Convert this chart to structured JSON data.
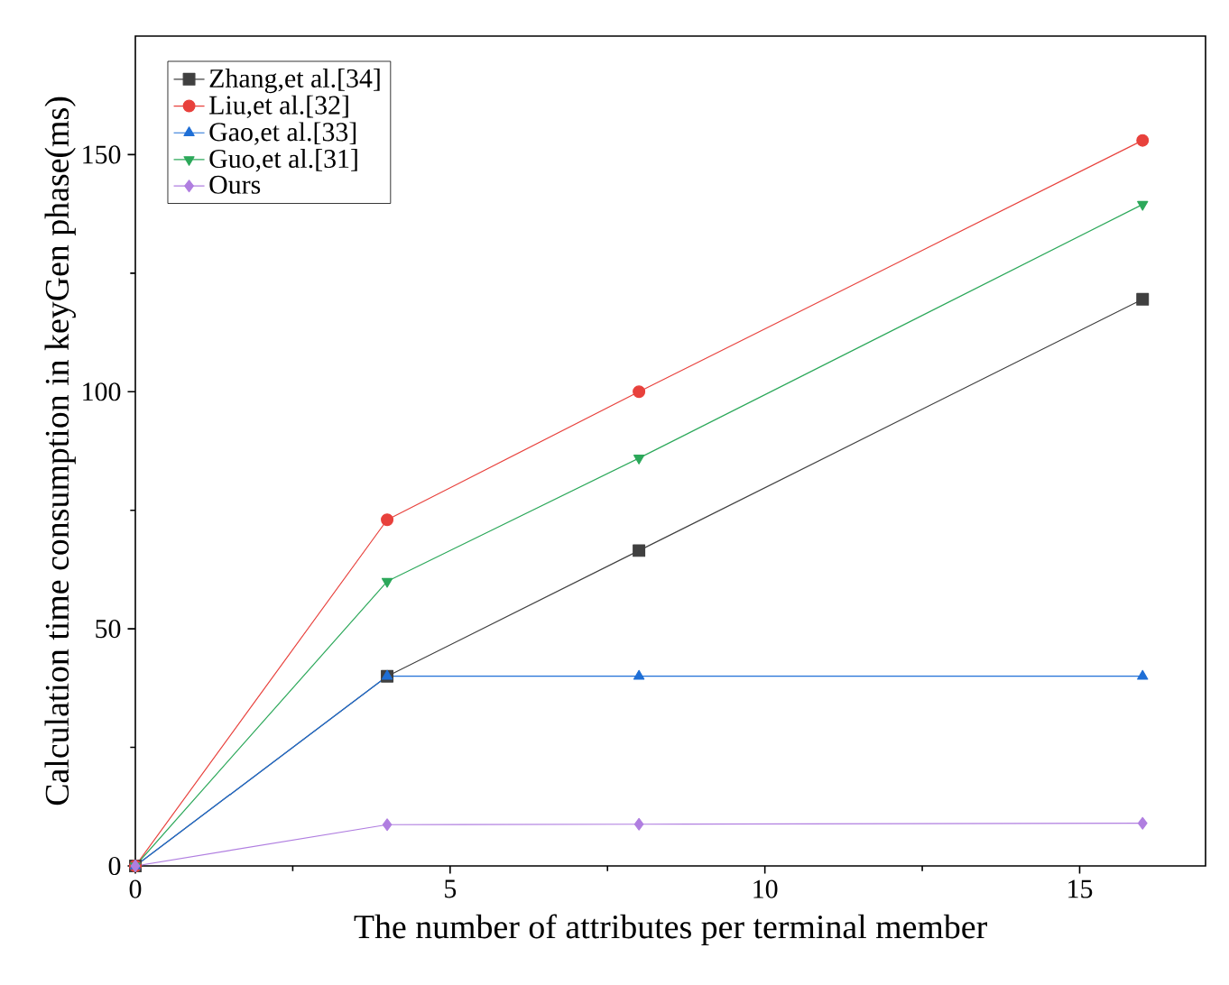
{
  "chart_data": {
    "type": "line",
    "xlabel": "The number of attributes per terminal member",
    "ylabel": "Calculation time consumption in keyGen phase(ms)",
    "x": [
      0,
      4,
      8,
      16
    ],
    "xlim": [
      0,
      17
    ],
    "ylim": [
      0,
      175
    ],
    "xticks": [
      0,
      5,
      10,
      15
    ],
    "yticks": [
      0,
      50,
      100,
      150
    ],
    "legend": "top left",
    "grid": false,
    "series": [
      {
        "name": "Zhang,et al.[34]",
        "color": "#404040",
        "marker": "square",
        "values": [
          0,
          40,
          66.5,
          119.5
        ]
      },
      {
        "name": "Liu,et al.[32]",
        "color": "#e8413c",
        "marker": "circle",
        "values": [
          0,
          73,
          100,
          153
        ]
      },
      {
        "name": "Gao,et al.[33]",
        "color": "#1f6fd6",
        "marker": "triangle",
        "values": [
          0,
          40,
          40,
          40
        ]
      },
      {
        "name": "Guo,et al.[31]",
        "color": "#2ca85a",
        "marker": "triangle down",
        "values": [
          0,
          60,
          86,
          139.5
        ]
      },
      {
        "name": "Ours",
        "color": "#b07ee0",
        "marker": "diamond",
        "values": [
          0,
          8.7,
          8.8,
          9
        ]
      }
    ]
  }
}
